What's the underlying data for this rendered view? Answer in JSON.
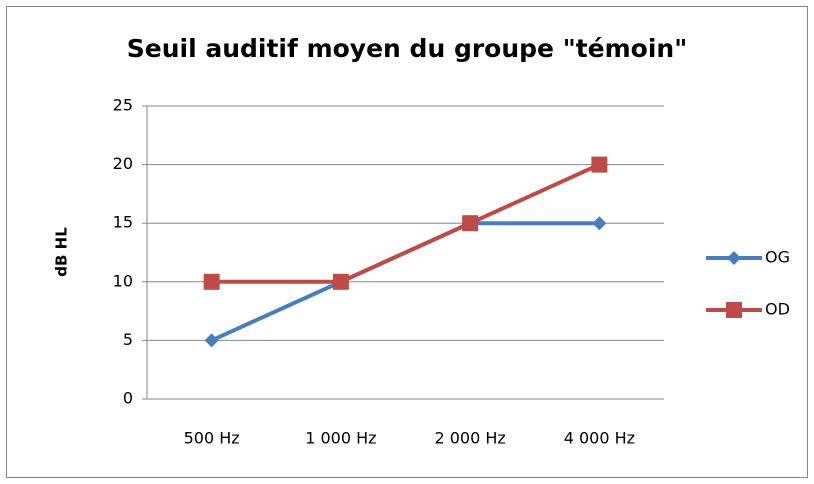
{
  "chart_data": {
    "type": "line",
    "title": "Seuil auditif moyen du groupe \"témoin\"",
    "y_label": "dB HL",
    "categories": [
      "500 Hz",
      "1 000 Hz",
      "2 000 Hz",
      "4 000 Hz"
    ],
    "series": [
      {
        "name": "OG",
        "color": "#4a7ebb",
        "marker": "diamond",
        "values": [
          5,
          10,
          15,
          15
        ]
      },
      {
        "name": "OD",
        "color": "#be4b48",
        "marker": "square",
        "values": [
          10,
          10,
          15,
          20
        ]
      }
    ],
    "ylim": [
      0,
      25
    ],
    "yticks": [
      0,
      5,
      10,
      15,
      20,
      25
    ],
    "grid": true,
    "legend": "right"
  }
}
